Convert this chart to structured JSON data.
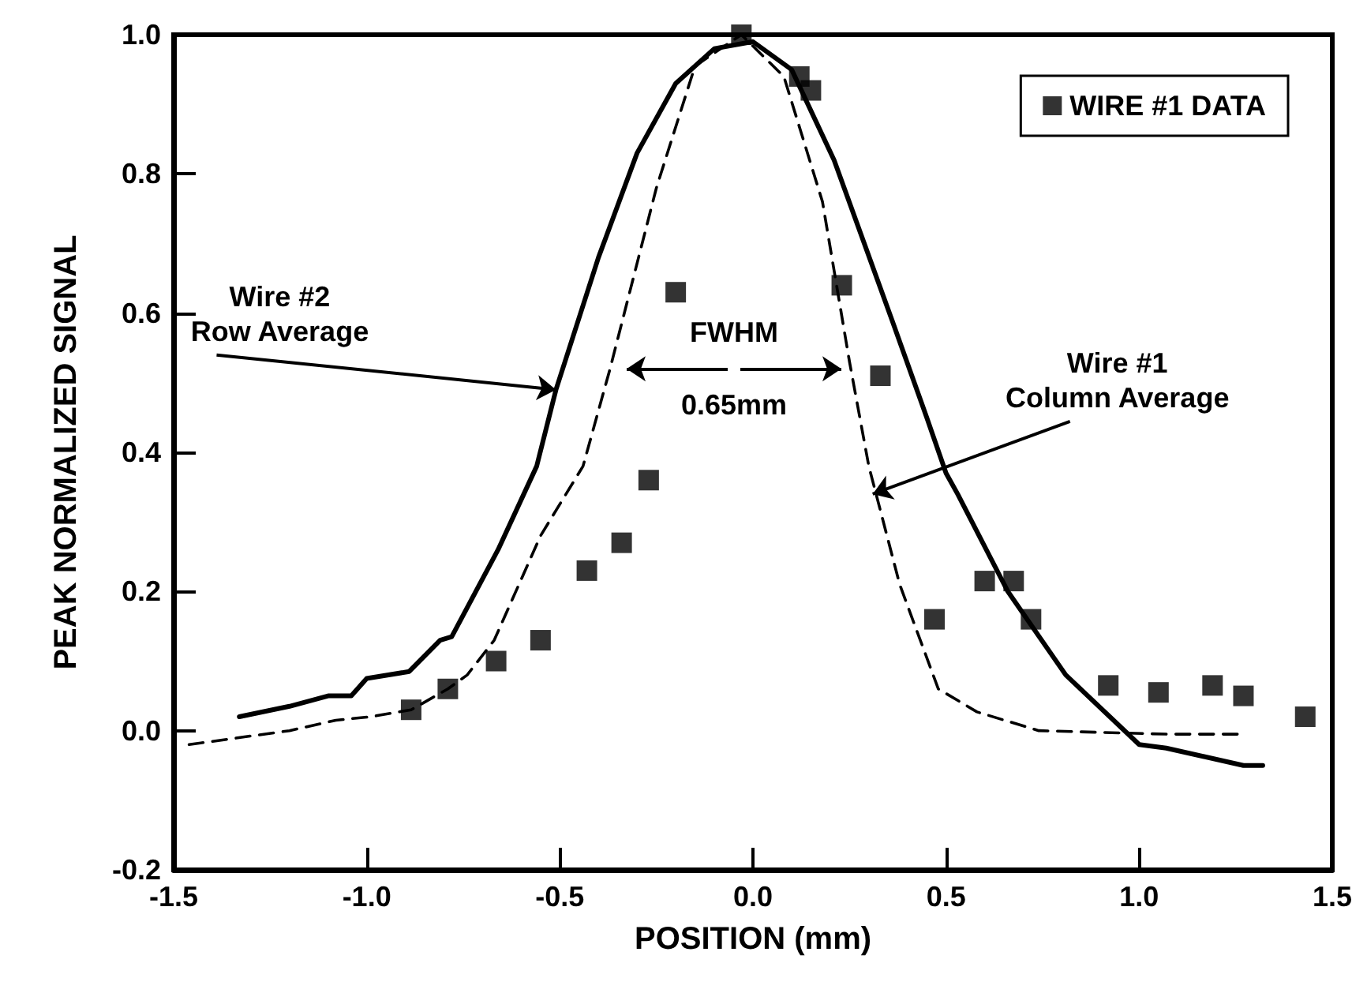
{
  "chart_data": {
    "type": "line",
    "xlabel": "POSITION (mm)",
    "ylabel": "PEAK NORMALIZED SIGNAL",
    "xlim": [
      -1.5,
      1.5
    ],
    "ylim": [
      -0.2,
      1.0
    ],
    "xticks": [
      {
        "value": -1.5,
        "label": "-1.5"
      },
      {
        "value": -1,
        "label": "-1.0"
      },
      {
        "value": -0.5,
        "label": "-0.5"
      },
      {
        "value": 0,
        "label": "0.0"
      },
      {
        "value": 0.5,
        "label": "0.5"
      },
      {
        "value": 1,
        "label": "1.0"
      },
      {
        "value": 1.5,
        "label": "1.5"
      }
    ],
    "yticks": [
      -0.2,
      {
        "value": 0,
        "label": "0.0"
      },
      0.2,
      0.4,
      0.6,
      0.8,
      {
        "value": 1,
        "label": "1.0"
      }
    ],
    "grid": false,
    "legend": "top right",
    "series": [
      {
        "color": "#000000",
        "line_style": "solid",
        "marker": "none",
        "x": [
          -1.33,
          -1.2,
          -1.1,
          -1.04,
          -1.0,
          -0.89,
          -0.81,
          -0.78,
          -0.66,
          -0.56,
          -0.51,
          -0.4,
          -0.3,
          -0.2,
          -0.1,
          0,
          0.1,
          0.21,
          0.36,
          0.45,
          0.5,
          0.53,
          0.66,
          0.81,
          1.0,
          1.07,
          1.27,
          1.32
        ],
        "values": [
          0.02,
          0.035,
          0.05,
          0.05,
          0.075,
          0.085,
          0.13,
          0.135,
          0.26,
          0.38,
          0.49,
          0.68,
          0.83,
          0.93,
          0.98,
          0.99,
          0.95,
          0.82,
          0.59,
          0.45,
          0.37,
          0.34,
          0.2,
          0.08,
          -0.02,
          -0.025,
          -0.05,
          -0.05
        ]
      },
      {
        "color": "#000000",
        "line_style": "dashed",
        "marker": "none",
        "x": [
          -1.46,
          -1.2,
          -1.08,
          -0.99,
          -0.885,
          -0.79,
          -0.74,
          -0.67,
          -0.55,
          -0.44,
          -0.37,
          -0.25,
          -0.15,
          -0.03,
          0.08,
          0.18,
          0.25,
          0.3,
          0.38,
          0.48,
          0.58,
          0.74,
          1.07,
          1.27
        ],
        "values": [
          -0.02,
          0.0,
          0.015,
          0.02,
          0.03,
          0.06,
          0.08,
          0.13,
          0.28,
          0.38,
          0.52,
          0.78,
          0.955,
          1.0,
          0.94,
          0.76,
          0.53,
          0.38,
          0.21,
          0.06,
          0.027,
          0.0,
          -0.005,
          -0.005
        ]
      },
      {
        "type": "scatter",
        "name": "WIRE #1 DATA",
        "color": "#000000",
        "marker": "square",
        "x": [
          -0.885,
          -0.79,
          -0.665,
          -0.55,
          -0.43,
          -0.34,
          -0.27,
          -0.2,
          -0.03,
          0.12,
          0.15,
          0.23,
          0.33,
          0.47,
          0.6,
          0.675,
          0.72,
          0.92,
          1.05,
          1.19,
          1.27,
          1.43
        ],
        "values": [
          0.03,
          0.06,
          0.1,
          0.13,
          0.23,
          0.27,
          0.36,
          0.63,
          1.0,
          0.94,
          0.92,
          0.64,
          0.51,
          0.16,
          0.215,
          0.215,
          0.16,
          0.065,
          0.055,
          0.065,
          0.05,
          0.02
        ]
      }
    ],
    "annotations": [
      {
        "text": "Wire #2\nRow Average",
        "x": -0.51,
        "y": 0.49
      },
      {
        "text": "Wire #1\nColumn Average",
        "x": 0.31,
        "y": 0.34
      },
      "FWHM\n0.65mm"
    ]
  }
}
